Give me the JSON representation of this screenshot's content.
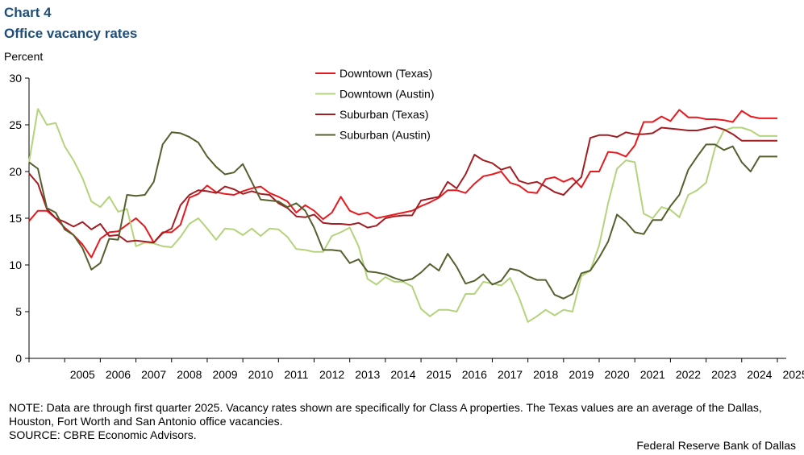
{
  "header": {
    "label": "Chart 4",
    "title": "Office vacancy rates",
    "y_unit": "Percent"
  },
  "footer": {
    "note": "NOTE: Data are through first quarter 2025. Vacancy rates shown are specifically for Class A properties. The Texas values are an average of the Dallas, Houston, Fort Worth and San Antonio office vacancies.",
    "source": "SOURCE: CBRE Economic Advisors.",
    "credit": "Federal Reserve Bank of Dallas"
  },
  "chart_data": {
    "type": "line",
    "title": "Office vacancy rates",
    "xlabel": "",
    "ylabel": "Percent",
    "ylim": [
      0,
      30
    ],
    "yticks": [
      0,
      5,
      10,
      15,
      20,
      25,
      30
    ],
    "xlim": [
      2004.0,
      2025.25
    ],
    "xticks": [
      "2005",
      "2006",
      "2007",
      "2008",
      "2009",
      "2010",
      "2011",
      "2012",
      "2013",
      "2014",
      "2015",
      "2016",
      "2017",
      "2018",
      "2019",
      "2020",
      "2021",
      "2022",
      "2023",
      "2024",
      "2025"
    ],
    "grid": false,
    "legend_position": "top-center",
    "series": [
      {
        "name": "Downtown (Texas)",
        "color": "#e8191e",
        "x": [
          2004.0,
          2004.25,
          2004.5,
          2004.75,
          2005.0,
          2005.25,
          2005.5,
          2005.75,
          2006.0,
          2006.25,
          2006.5,
          2006.75,
          2007.0,
          2007.25,
          2007.5,
          2007.75,
          2008.0,
          2008.25,
          2008.5,
          2008.75,
          2009.0,
          2009.25,
          2009.5,
          2009.75,
          2010.0,
          2010.25,
          2010.5,
          2010.75,
          2011.0,
          2011.25,
          2011.5,
          2011.75,
          2012.0,
          2012.25,
          2012.5,
          2012.75,
          2013.0,
          2013.25,
          2013.5,
          2013.75,
          2014.0,
          2014.25,
          2014.5,
          2014.75,
          2015.0,
          2015.25,
          2015.5,
          2015.75,
          2016.0,
          2016.25,
          2016.5,
          2016.75,
          2017.0,
          2017.25,
          2017.5,
          2017.75,
          2018.0,
          2018.25,
          2018.5,
          2018.75,
          2019.0,
          2019.25,
          2019.5,
          2019.75,
          2020.0,
          2020.25,
          2020.5,
          2020.75,
          2021.0,
          2021.25,
          2021.5,
          2021.75,
          2022.0,
          2022.25,
          2022.5,
          2022.75,
          2023.0,
          2023.25,
          2023.5,
          2023.75,
          2024.0,
          2024.25,
          2024.5,
          2024.75,
          2025.0
        ],
        "values": [
          14.7,
          15.8,
          15.8,
          15.0,
          14.0,
          13.2,
          12.2,
          10.8,
          12.8,
          13.5,
          13.6,
          14.3,
          15.0,
          14.1,
          12.4,
          13.5,
          13.5,
          14.3,
          17.2,
          17.6,
          18.5,
          17.8,
          17.6,
          17.5,
          17.9,
          18.2,
          18.4,
          17.7,
          17.3,
          16.8,
          15.6,
          16.4,
          15.8,
          14.9,
          15.6,
          17.3,
          15.8,
          15.4,
          15.6,
          15.0,
          15.2,
          15.4,
          15.6,
          15.8,
          16.3,
          16.7,
          17.2,
          18.0,
          18.0,
          17.7,
          18.7,
          19.5,
          19.7,
          20.0,
          18.8,
          18.5,
          17.8,
          17.7,
          19.2,
          19.4,
          18.9,
          19.3,
          18.3,
          20.0,
          20.0,
          22.1,
          22.0,
          21.6,
          22.8,
          25.3,
          25.3,
          25.9,
          25.4,
          26.6,
          25.8,
          25.8,
          25.6,
          25.6,
          25.5,
          25.3,
          26.5,
          25.9,
          25.7,
          25.7,
          25.7
        ]
      },
      {
        "name": "Downtown (Austin)",
        "color": "#b5d37c",
        "x": [
          2004.0,
          2004.25,
          2004.5,
          2004.75,
          2005.0,
          2005.25,
          2005.5,
          2005.75,
          2006.0,
          2006.25,
          2006.5,
          2006.75,
          2007.0,
          2007.25,
          2007.5,
          2007.75,
          2008.0,
          2008.25,
          2008.5,
          2008.75,
          2009.0,
          2009.25,
          2009.5,
          2009.75,
          2010.0,
          2010.25,
          2010.5,
          2010.75,
          2011.0,
          2011.25,
          2011.5,
          2011.75,
          2012.0,
          2012.25,
          2012.5,
          2012.75,
          2013.0,
          2013.25,
          2013.5,
          2013.75,
          2014.0,
          2014.25,
          2014.5,
          2014.75,
          2015.0,
          2015.25,
          2015.5,
          2015.75,
          2016.0,
          2016.25,
          2016.5,
          2016.75,
          2017.0,
          2017.25,
          2017.5,
          2017.75,
          2018.0,
          2018.25,
          2018.5,
          2018.75,
          2019.0,
          2019.25,
          2019.5,
          2019.75,
          2020.0,
          2020.25,
          2020.5,
          2020.75,
          2021.0,
          2021.25,
          2021.5,
          2021.75,
          2022.0,
          2022.25,
          2022.5,
          2022.75,
          2023.0,
          2023.25,
          2023.5,
          2023.75,
          2024.0,
          2024.25,
          2024.5,
          2024.75,
          2025.0
        ],
        "values": [
          21.0,
          26.7,
          25.0,
          25.2,
          22.7,
          21.2,
          19.3,
          16.8,
          16.2,
          17.3,
          15.7,
          16.0,
          12.0,
          12.4,
          12.3,
          12.0,
          11.9,
          13.0,
          14.4,
          15.0,
          13.9,
          12.7,
          13.9,
          13.8,
          13.2,
          13.9,
          13.1,
          13.9,
          13.8,
          13.0,
          11.7,
          11.6,
          11.4,
          11.4,
          13.1,
          13.5,
          14.0,
          12.0,
          8.5,
          7.9,
          8.7,
          8.2,
          8.2,
          7.7,
          5.3,
          4.5,
          5.2,
          5.2,
          5.0,
          6.9,
          6.9,
          8.2,
          8.0,
          7.8,
          8.6,
          6.5,
          3.9,
          4.5,
          5.2,
          4.6,
          5.2,
          5.0,
          8.8,
          9.4,
          12.1,
          16.6,
          20.3,
          21.2,
          21.0,
          15.5,
          15.0,
          16.2,
          15.9,
          15.1,
          17.5,
          18.0,
          18.8,
          22.5,
          24.4,
          24.7,
          24.7,
          24.4,
          23.8,
          23.8,
          23.8
        ]
      },
      {
        "name": "Suburban (Texas)",
        "color": "#a31d22",
        "x": [
          2004.0,
          2004.25,
          2004.5,
          2004.75,
          2005.0,
          2005.25,
          2005.5,
          2005.75,
          2006.0,
          2006.25,
          2006.5,
          2006.75,
          2007.0,
          2007.25,
          2007.5,
          2007.75,
          2008.0,
          2008.25,
          2008.5,
          2008.75,
          2009.0,
          2009.25,
          2009.5,
          2009.75,
          2010.0,
          2010.25,
          2010.5,
          2010.75,
          2011.0,
          2011.25,
          2011.5,
          2011.75,
          2012.0,
          2012.25,
          2012.5,
          2012.75,
          2013.0,
          2013.25,
          2013.5,
          2013.75,
          2014.0,
          2014.25,
          2014.5,
          2014.75,
          2015.0,
          2015.25,
          2015.5,
          2015.75,
          2016.0,
          2016.25,
          2016.5,
          2016.75,
          2017.0,
          2017.25,
          2017.5,
          2017.75,
          2018.0,
          2018.25,
          2018.5,
          2018.75,
          2019.0,
          2019.25,
          2019.5,
          2019.75,
          2020.0,
          2020.25,
          2020.5,
          2020.75,
          2021.0,
          2021.25,
          2021.5,
          2021.75,
          2022.0,
          2022.25,
          2022.5,
          2022.75,
          2023.0,
          2023.25,
          2023.5,
          2023.75,
          2024.0,
          2024.25,
          2024.5,
          2024.75,
          2025.0
        ],
        "values": [
          19.8,
          18.7,
          16.0,
          15.0,
          14.6,
          14.1,
          14.6,
          13.8,
          14.4,
          13.1,
          13.2,
          12.5,
          12.6,
          12.5,
          12.4,
          13.4,
          13.9,
          16.4,
          17.5,
          18.0,
          17.9,
          17.7,
          18.4,
          18.1,
          17.6,
          17.9,
          17.6,
          17.5,
          16.6,
          16.1,
          15.2,
          15.1,
          15.4,
          14.5,
          14.4,
          14.4,
          14.3,
          14.5,
          14.0,
          14.2,
          15.0,
          15.2,
          15.3,
          15.3,
          16.9,
          17.1,
          17.3,
          18.9,
          18.2,
          19.7,
          21.8,
          21.2,
          20.9,
          20.2,
          20.5,
          19.0,
          18.7,
          18.9,
          18.4,
          17.8,
          17.5,
          18.5,
          19.4,
          23.6,
          23.9,
          23.9,
          23.7,
          24.2,
          24.0,
          24.0,
          24.1,
          24.7,
          24.6,
          24.5,
          24.4,
          24.4,
          24.6,
          24.8,
          24.5,
          24.0,
          23.3,
          23.3,
          23.3,
          23.3,
          23.3
        ]
      },
      {
        "name": "Suburban (Austin)",
        "color": "#55602e",
        "x": [
          2004.0,
          2004.25,
          2004.5,
          2004.75,
          2005.0,
          2005.25,
          2005.5,
          2005.75,
          2006.0,
          2006.25,
          2006.5,
          2006.75,
          2007.0,
          2007.25,
          2007.5,
          2007.75,
          2008.0,
          2008.25,
          2008.5,
          2008.75,
          2009.0,
          2009.25,
          2009.5,
          2009.75,
          2010.0,
          2010.25,
          2010.5,
          2010.75,
          2011.0,
          2011.25,
          2011.5,
          2011.75,
          2012.0,
          2012.25,
          2012.5,
          2012.75,
          2013.0,
          2013.25,
          2013.5,
          2013.75,
          2014.0,
          2014.25,
          2014.5,
          2014.75,
          2015.0,
          2015.25,
          2015.5,
          2015.75,
          2016.0,
          2016.25,
          2016.5,
          2016.75,
          2017.0,
          2017.25,
          2017.5,
          2017.75,
          2018.0,
          2018.25,
          2018.5,
          2018.75,
          2019.0,
          2019.25,
          2019.5,
          2019.75,
          2020.0,
          2020.25,
          2020.5,
          2020.75,
          2021.0,
          2021.25,
          2021.5,
          2021.75,
          2022.0,
          2022.25,
          2022.5,
          2022.75,
          2023.0,
          2023.25,
          2023.5,
          2023.75,
          2024.0,
          2024.25,
          2024.5,
          2024.75,
          2025.0
        ],
        "values": [
          21.0,
          20.3,
          16.1,
          15.6,
          13.8,
          13.2,
          11.8,
          9.5,
          10.2,
          12.8,
          12.7,
          17.5,
          17.4,
          17.5,
          18.9,
          22.9,
          24.2,
          24.1,
          23.7,
          23.1,
          21.6,
          20.5,
          19.7,
          19.9,
          20.8,
          18.9,
          17.0,
          16.9,
          16.8,
          16.2,
          16.6,
          15.8,
          14.0,
          11.6,
          11.6,
          11.5,
          10.2,
          10.6,
          9.3,
          9.2,
          9.0,
          8.6,
          8.3,
          8.5,
          9.2,
          10.1,
          9.4,
          11.2,
          9.8,
          8.0,
          8.3,
          9.0,
          7.9,
          8.3,
          9.6,
          9.4,
          8.8,
          8.4,
          8.4,
          6.8,
          6.4,
          6.9,
          9.1,
          9.4,
          10.8,
          12.5,
          15.4,
          14.6,
          13.5,
          13.3,
          14.8,
          14.8,
          16.3,
          17.5,
          20.2,
          21.6,
          22.9,
          22.9,
          22.3,
          22.7,
          21.0,
          20.0,
          21.6,
          21.6,
          21.6
        ]
      }
    ]
  }
}
